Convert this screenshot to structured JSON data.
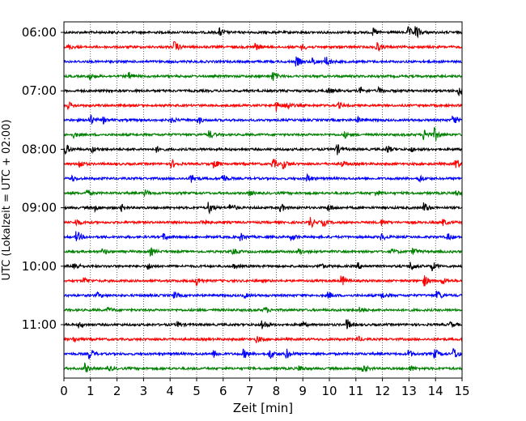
{
  "chart_data": {
    "type": "line",
    "xlabel": "Zeit  [min]",
    "ylabel": "UTC (Lokalzeit = UTC + 02:00)",
    "xlim": [
      0,
      15
    ],
    "x_ticks": [
      "0",
      "1",
      "2",
      "3",
      "4",
      "5",
      "6",
      "7",
      "8",
      "9",
      "10",
      "11",
      "12",
      "13",
      "14",
      "15"
    ],
    "y_tick_labels": [
      "06:00",
      "07:00",
      "08:00",
      "09:00",
      "10:00",
      "11:00"
    ],
    "y_tick_rows": [
      0,
      4,
      8,
      12,
      16,
      20
    ],
    "vertical_grid": "dotted",
    "trace_colors": [
      "#000000",
      "#ff0000",
      "#0000ff",
      "#008000"
    ],
    "series": [
      {
        "start": "06:00",
        "events": [
          [
            5.9,
            0.8
          ],
          [
            11.7,
            0.7
          ],
          [
            13.0,
            1.0
          ],
          [
            13.3,
            1.2
          ]
        ]
      },
      {
        "start": "06:15",
        "events": [
          [
            0.2,
            0.5
          ],
          [
            4.2,
            1.1
          ],
          [
            7.2,
            0.9
          ],
          [
            9.0,
            0.6
          ],
          [
            11.8,
            1.1
          ]
        ]
      },
      {
        "start": "06:30",
        "events": [
          [
            8.8,
            0.9
          ],
          [
            9.4,
            0.7
          ],
          [
            9.9,
            1.0
          ]
        ]
      },
      {
        "start": "06:45",
        "events": [
          [
            1.0,
            0.6
          ],
          [
            2.5,
            0.7
          ],
          [
            7.9,
            0.9
          ]
        ]
      },
      {
        "start": "07:00",
        "events": [
          [
            10.0,
            0.5
          ],
          [
            11.2,
            0.6
          ],
          [
            11.9,
            0.6
          ],
          [
            14.9,
            1.0
          ]
        ]
      },
      {
        "start": "07:15",
        "events": [
          [
            0.2,
            0.6
          ],
          [
            8.0,
            1.1
          ],
          [
            8.4,
            0.9
          ],
          [
            10.4,
            0.5
          ]
        ]
      },
      {
        "start": "07:30",
        "events": [
          [
            1.0,
            1.2
          ],
          [
            1.5,
            0.6
          ],
          [
            4.1,
            0.5
          ],
          [
            5.1,
            0.6
          ],
          [
            11.1,
            0.5
          ],
          [
            14.7,
            1.0
          ]
        ]
      },
      {
        "start": "07:45",
        "events": [
          [
            0.4,
            0.5
          ],
          [
            5.5,
            0.8
          ],
          [
            10.6,
            0.6
          ],
          [
            13.6,
            1.1
          ],
          [
            14.0,
            1.3
          ]
        ]
      },
      {
        "start": "08:00",
        "events": [
          [
            0.1,
            1.0
          ],
          [
            1.1,
            0.5
          ],
          [
            3.5,
            0.6
          ],
          [
            10.3,
            1.1
          ],
          [
            12.2,
            0.8
          ],
          [
            13.1,
            0.5
          ]
        ]
      },
      {
        "start": "08:15",
        "events": [
          [
            0.6,
            0.8
          ],
          [
            4.1,
            0.7
          ],
          [
            5.7,
            0.8
          ],
          [
            7.9,
            1.0
          ],
          [
            8.3,
            0.9
          ],
          [
            10.5,
            0.6
          ],
          [
            14.8,
            1.1
          ]
        ]
      },
      {
        "start": "08:30",
        "events": [
          [
            0.3,
            0.6
          ],
          [
            4.8,
            1.0
          ],
          [
            6.0,
            1.0
          ],
          [
            9.2,
            0.8
          ],
          [
            13.4,
            0.8
          ]
        ]
      },
      {
        "start": "08:45",
        "events": [
          [
            0.9,
            0.5
          ],
          [
            3.1,
            0.6
          ],
          [
            7.0,
            0.5
          ],
          [
            11.8,
            0.6
          ],
          [
            14.8,
            0.5
          ]
        ]
      },
      {
        "start": "09:00",
        "events": [
          [
            1.2,
            0.6
          ],
          [
            2.2,
            0.6
          ],
          [
            5.5,
            1.1
          ],
          [
            6.3,
            0.9
          ],
          [
            8.2,
            0.8
          ],
          [
            10.0,
            0.7
          ],
          [
            13.6,
            1.1
          ]
        ]
      },
      {
        "start": "09:15",
        "events": [
          [
            0.5,
            0.6
          ],
          [
            5.2,
            1.0
          ],
          [
            9.3,
            1.2
          ],
          [
            9.8,
            0.7
          ],
          [
            12.0,
            0.6
          ],
          [
            14.3,
            0.6
          ]
        ]
      },
      {
        "start": "09:30",
        "events": [
          [
            0.5,
            1.2
          ],
          [
            3.8,
            0.6
          ],
          [
            6.7,
            0.7
          ],
          [
            8.6,
            0.7
          ],
          [
            12.0,
            0.6
          ],
          [
            14.5,
            0.6
          ]
        ]
      },
      {
        "start": "09:45",
        "events": [
          [
            1.5,
            0.5
          ],
          [
            3.3,
            0.7
          ],
          [
            6.4,
            0.6
          ],
          [
            8.9,
            0.6
          ],
          [
            12.4,
            0.5
          ],
          [
            13.2,
            0.7
          ]
        ]
      },
      {
        "start": "10:00",
        "events": [
          [
            0.4,
            1.0
          ],
          [
            3.2,
            0.6
          ],
          [
            6.4,
            0.5
          ],
          [
            9.7,
            0.5
          ],
          [
            11.1,
            0.6
          ],
          [
            13.1,
            0.9
          ],
          [
            13.9,
            0.9
          ]
        ]
      },
      {
        "start": "10:15",
        "events": [
          [
            0.8,
            0.6
          ],
          [
            5.0,
            1.0
          ],
          [
            10.5,
            1.0
          ],
          [
            13.6,
            1.1
          ],
          [
            14.3,
            0.6
          ]
        ]
      },
      {
        "start": "10:30",
        "events": [
          [
            1.3,
            0.5
          ],
          [
            4.2,
            0.6
          ],
          [
            6.8,
            0.5
          ],
          [
            10.0,
            0.6
          ],
          [
            12.0,
            0.6
          ],
          [
            14.1,
            1.0
          ]
        ]
      },
      {
        "start": "10:45",
        "events": [
          [
            1.7,
            0.5
          ],
          [
            7.6,
            0.6
          ],
          [
            11.2,
            0.5
          ]
        ]
      },
      {
        "start": "11:00",
        "events": [
          [
            0.6,
            0.6
          ],
          [
            4.3,
            0.6
          ],
          [
            7.5,
            1.1
          ],
          [
            9.0,
            0.5
          ],
          [
            10.7,
            1.0
          ],
          [
            14.6,
            0.5
          ]
        ]
      },
      {
        "start": "11:15",
        "events": [
          [
            0.4,
            0.5
          ],
          [
            7.3,
            0.7
          ],
          [
            11.1,
            0.5
          ]
        ]
      },
      {
        "start": "11:30",
        "events": [
          [
            1.0,
            1.1
          ],
          [
            5.7,
            0.7
          ],
          [
            6.8,
            0.9
          ],
          [
            7.8,
            1.0
          ],
          [
            8.4,
            1.0
          ],
          [
            13.0,
            0.8
          ],
          [
            14.0,
            0.9
          ],
          [
            14.7,
            1.3
          ]
        ]
      },
      {
        "start": "11:45",
        "events": [
          [
            0.8,
            1.0
          ],
          [
            1.7,
            0.5
          ],
          [
            8.9,
            0.6
          ],
          [
            11.3,
            0.8
          ],
          [
            13.1,
            0.5
          ]
        ]
      }
    ]
  }
}
